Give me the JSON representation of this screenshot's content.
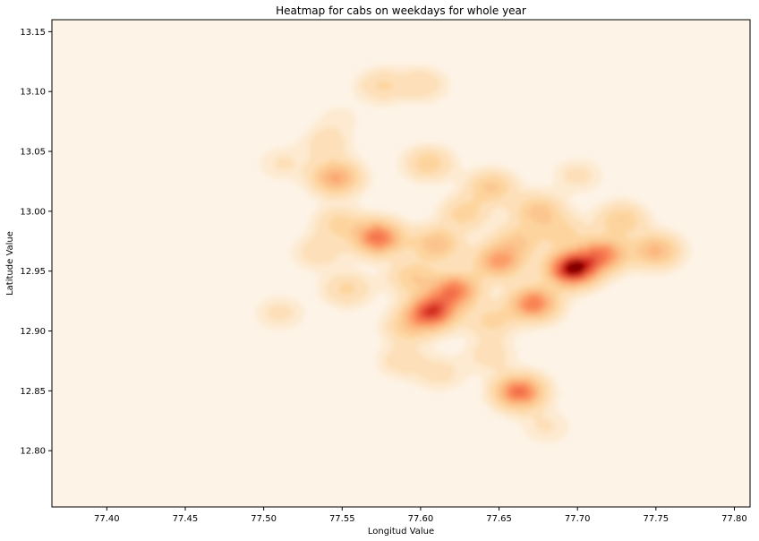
{
  "chart_data": {
    "type": "heatmap",
    "title": "Heatmap for cabs on weekdays for whole year",
    "xlabel": "Longitud Value",
    "ylabel": "Latitude Value",
    "xlim": [
      77.365,
      77.81
    ],
    "ylim": [
      12.753,
      13.16
    ],
    "xticks": [
      "77.40",
      "77.45",
      "77.50",
      "77.55",
      "77.60",
      "77.65",
      "77.70",
      "77.75",
      "77.80"
    ],
    "yticks": [
      "12.80",
      "12.85",
      "12.90",
      "12.95",
      "13.00",
      "13.05",
      "13.10",
      "13.15"
    ],
    "colormap": "OrRd",
    "colors": {
      "low": "#fdf3e6",
      "mid": "#fc8d59",
      "high": "#7f0000"
    },
    "grid": false,
    "density_peaks": [
      {
        "x": 77.697,
        "y": 12.952,
        "intensity": 1.0
      },
      {
        "x": 77.607,
        "y": 12.916,
        "intensity": 0.78
      },
      {
        "x": 77.663,
        "y": 12.849,
        "intensity": 0.66
      },
      {
        "x": 77.573,
        "y": 12.978,
        "intensity": 0.64
      },
      {
        "x": 77.672,
        "y": 12.923,
        "intensity": 0.6
      },
      {
        "x": 77.622,
        "y": 12.934,
        "intensity": 0.58
      },
      {
        "x": 77.716,
        "y": 12.964,
        "intensity": 0.55
      },
      {
        "x": 77.65,
        "y": 12.958,
        "intensity": 0.48
      },
      {
        "x": 77.546,
        "y": 13.028,
        "intensity": 0.45
      },
      {
        "x": 77.75,
        "y": 12.967,
        "intensity": 0.38
      },
      {
        "x": 77.61,
        "y": 12.972,
        "intensity": 0.35
      },
      {
        "x": 77.675,
        "y": 13.0,
        "intensity": 0.3
      },
      {
        "x": 77.645,
        "y": 13.02,
        "intensity": 0.28
      },
      {
        "x": 77.605,
        "y": 13.04,
        "intensity": 0.24
      },
      {
        "x": 77.728,
        "y": 12.993,
        "intensity": 0.26
      },
      {
        "x": 77.592,
        "y": 12.903,
        "intensity": 0.22
      },
      {
        "x": 77.548,
        "y": 12.99,
        "intensity": 0.2
      },
      {
        "x": 77.575,
        "y": 13.105,
        "intensity": 0.18
      },
      {
        "x": 77.601,
        "y": 13.106,
        "intensity": 0.16
      },
      {
        "x": 77.54,
        "y": 13.057,
        "intensity": 0.14
      },
      {
        "x": 77.535,
        "y": 12.966,
        "intensity": 0.16
      },
      {
        "x": 77.553,
        "y": 12.935,
        "intensity": 0.2
      },
      {
        "x": 77.645,
        "y": 12.908,
        "intensity": 0.2
      },
      {
        "x": 77.588,
        "y": 12.875,
        "intensity": 0.14
      },
      {
        "x": 77.612,
        "y": 12.865,
        "intensity": 0.13
      },
      {
        "x": 77.644,
        "y": 12.88,
        "intensity": 0.14
      },
      {
        "x": 77.69,
        "y": 12.983,
        "intensity": 0.2
      },
      {
        "x": 77.51,
        "y": 12.915,
        "intensity": 0.12
      },
      {
        "x": 77.512,
        "y": 13.04,
        "intensity": 0.1
      },
      {
        "x": 77.68,
        "y": 12.82,
        "intensity": 0.1
      },
      {
        "x": 77.7,
        "y": 13.03,
        "intensity": 0.12
      },
      {
        "x": 77.628,
        "y": 12.998,
        "intensity": 0.22
      },
      {
        "x": 77.595,
        "y": 12.945,
        "intensity": 0.25
      },
      {
        "x": 77.662,
        "y": 12.975,
        "intensity": 0.25
      },
      {
        "x": 77.548,
        "y": 13.078,
        "intensity": 0.06
      }
    ]
  }
}
